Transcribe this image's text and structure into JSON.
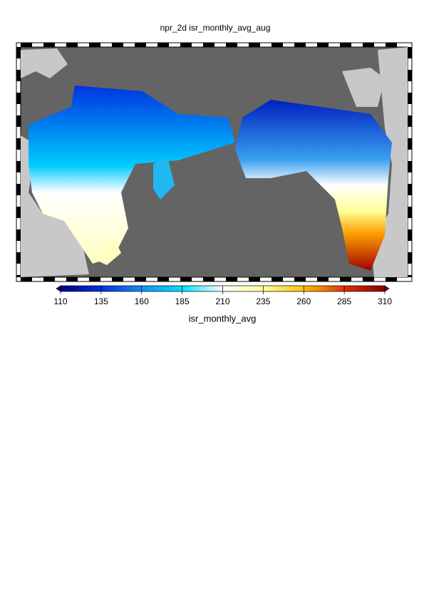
{
  "title": "npr_2d isr_monthly_avg_aug",
  "colorbar": {
    "label": "isr_monthly_avg",
    "ticks": [
      110,
      135,
      160,
      185,
      210,
      235,
      260,
      285,
      310
    ],
    "colors": [
      "#000080",
      "#0033e0",
      "#1a8cf0",
      "#00e0ff",
      "#ffffff",
      "#ffff99",
      "#ffc000",
      "#e03000",
      "#8b0000"
    ]
  }
}
